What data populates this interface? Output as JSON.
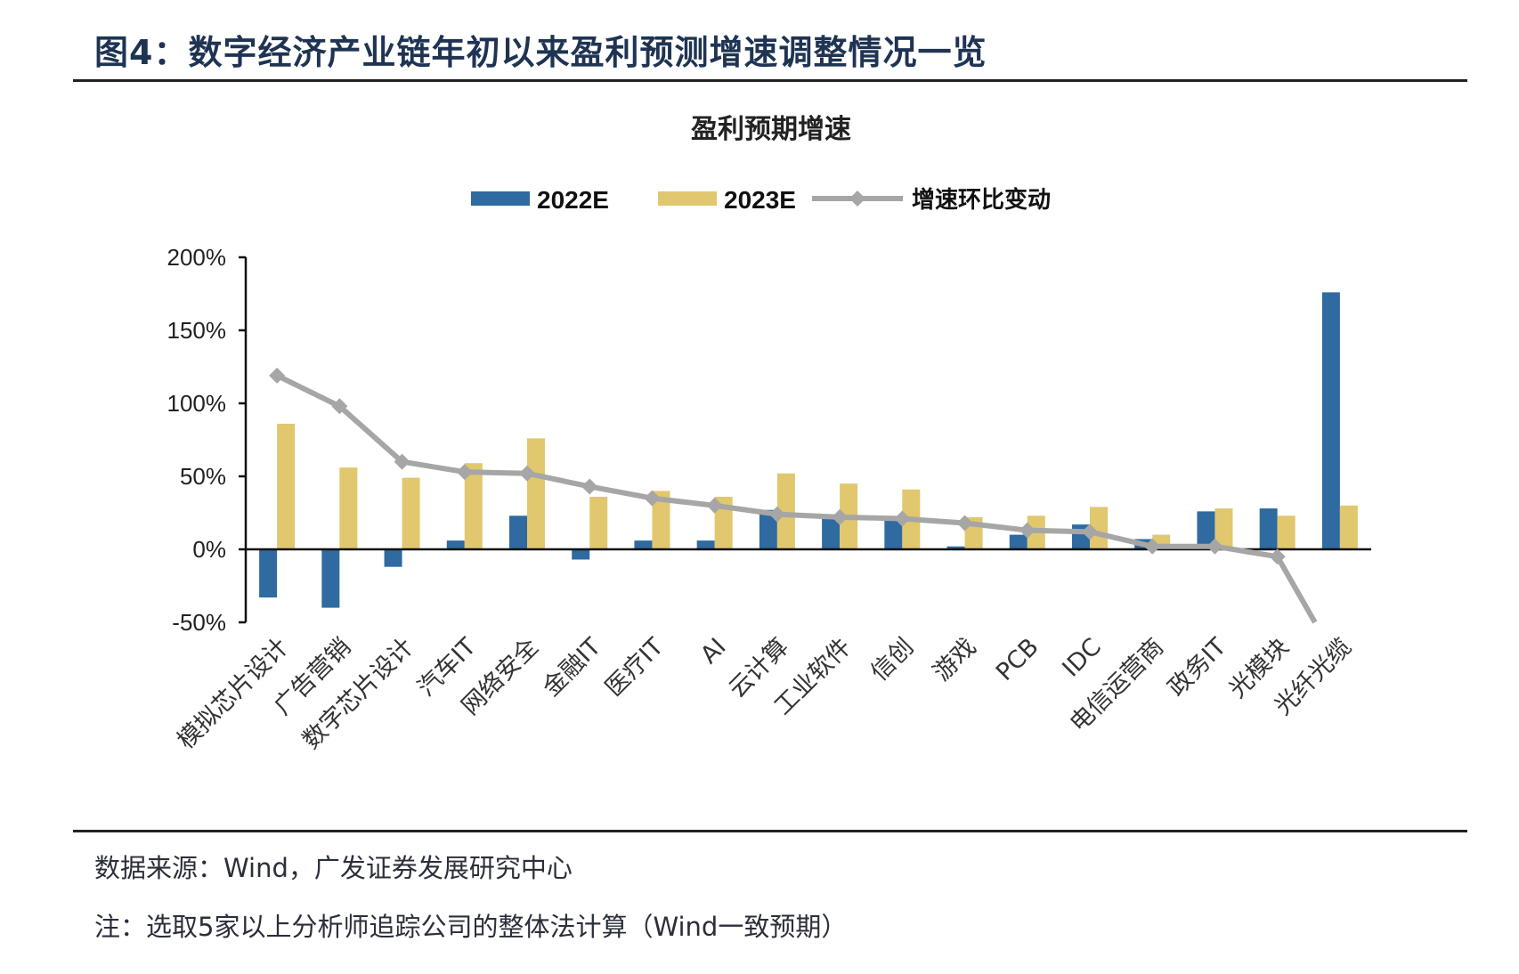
{
  "header": {
    "figure_title": "图4：数字经济产业链年初以来盈利预测增速调整情况一览"
  },
  "footer": {
    "source": "数据来源：Wind，广发证券发展研究中心",
    "note": "注：选取5家以上分析师追踪公司的整体法计算（Wind一致预期）"
  },
  "colors": {
    "series_2022E": "#2f6aa1",
    "series_2023E": "#e1c76d",
    "series_change": "#a6a6a6",
    "axis": "#111111",
    "title": "#1f3453"
  },
  "chart_data": {
    "type": "bar",
    "title": "盈利预期增速",
    "xlabel": "",
    "ylabel": "",
    "ylim": [
      -50,
      200
    ],
    "yticks": [
      200,
      150,
      100,
      50,
      0,
      -50
    ],
    "ytick_labels": [
      "200%",
      "150%",
      "100%",
      "50%",
      "0%",
      "-50%"
    ],
    "grid": false,
    "legend_position": "top-center",
    "legend": [
      "2022E",
      "2023E",
      "增速环比变动"
    ],
    "categories": [
      "模拟芯片设计",
      "广告营销",
      "数字芯片设计",
      "汽车IT",
      "网络安全",
      "金融IT",
      "医疗IT",
      "AI",
      "云计算",
      "工业软件",
      "信创",
      "游戏",
      "PCB",
      "IDC",
      "电信运营商",
      "政务IT",
      "光模块",
      "光纤光缆"
    ],
    "series": [
      {
        "name": "2022E",
        "type": "bar",
        "unit": "%",
        "values": [
          -33,
          -40,
          -12,
          6,
          23,
          -7,
          6,
          6,
          27,
          21,
          20,
          2,
          10,
          17,
          7,
          26,
          28,
          176
        ]
      },
      {
        "name": "2023E",
        "type": "bar",
        "unit": "%",
        "values": [
          86,
          56,
          49,
          59,
          76,
          36,
          40,
          36,
          52,
          45,
          41,
          22,
          23,
          29,
          10,
          28,
          23,
          30
        ]
      },
      {
        "name": "增速环比变动",
        "type": "line",
        "unit": "%",
        "marker": "diamond",
        "values": [
          119,
          98,
          60,
          53,
          52,
          43,
          35,
          30,
          24,
          22,
          21,
          18,
          13,
          12,
          2,
          2,
          -5,
          -80
        ],
        "note": "last point extends below -50% and is clipped by the axis range"
      }
    ]
  }
}
